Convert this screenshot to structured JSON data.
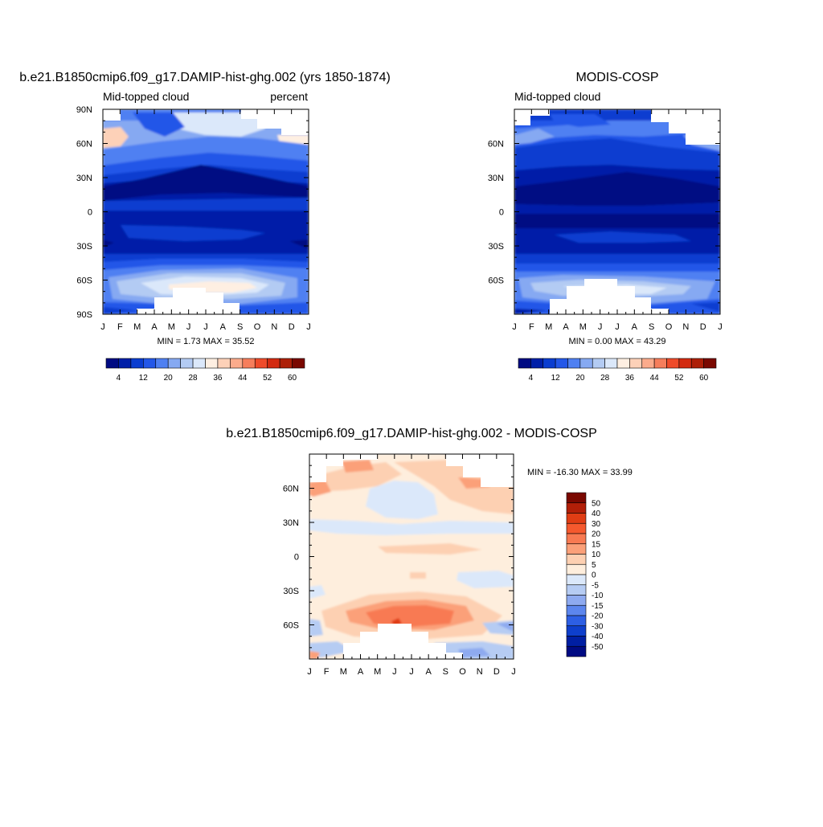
{
  "months": [
    "J",
    "F",
    "M",
    "A",
    "M",
    "J",
    "J",
    "A",
    "S",
    "O",
    "N",
    "D",
    "J"
  ],
  "lat_labels_full": [
    "90N",
    "60N",
    "30N",
    "0",
    "30S",
    "60S",
    "90S"
  ],
  "lat_labels_partial": [
    "60N",
    "30N",
    "0",
    "30S",
    "60S"
  ],
  "seq_levels": [
    4,
    8,
    12,
    16,
    20,
    24,
    28,
    32,
    36,
    40,
    44,
    48,
    52,
    56,
    60
  ],
  "seq_ticks": [
    "4",
    "12",
    "20",
    "28",
    "36",
    "44",
    "52",
    "60"
  ],
  "seq_colors": [
    "#000b83",
    "#001fa8",
    "#0a3dd0",
    "#2357e8",
    "#4f80f2",
    "#86a9f2",
    "#b3cbf3",
    "#dbe8fa",
    "#feefe2",
    "#fdd1b8",
    "#fbab8c",
    "#f67e5c",
    "#ef4b2a",
    "#d32a10",
    "#ad1f07",
    "#7a0800"
  ],
  "diff_levels": [
    "50",
    "40",
    "30",
    "20",
    "15",
    "10",
    "5",
    "0",
    "-5",
    "-10",
    "-15",
    "-20",
    "-30",
    "-40",
    "-50"
  ],
  "diff_colors": [
    "#7a0800",
    "#b21f08",
    "#e03d14",
    "#f5592e",
    "#f87a52",
    "#fba079",
    "#fdd0b2",
    "#feeedd",
    "#dbe8fa",
    "#b6ccf3",
    "#8eaaf0",
    "#5c86ee",
    "#2d5fe4",
    "#0e3fcc",
    "#001fa3",
    "#000b83"
  ],
  "panels": {
    "model": {
      "title": "b.e21.B1850cmip6.f09_g17.DAMIP-hist-ghg.002 (yrs 1850-1874)",
      "left_label": "Mid-topped cloud",
      "right_label": "percent",
      "stats": "MIN =   1.73 MAX =  35.52"
    },
    "obs": {
      "title": "MODIS-COSP",
      "left_label": "Mid-topped cloud",
      "stats": "MIN =   0.00 MAX =  43.29"
    },
    "diff": {
      "title": "b.e21.B1850cmip6.f09_g17.DAMIP-hist-ghg.002 - MODIS-COSP",
      "stats": "MIN = -16.30 MAX =  33.99"
    }
  },
  "chart_data": [
    {
      "type": "heatmap",
      "title": "b.e21.B1850cmip6.f09_g17.DAMIP-hist-ghg.002 (yrs 1850-1874)",
      "subtitle_left": "Mid-topped cloud",
      "subtitle_right": "percent",
      "x": "month (Jan to Jan)",
      "y": "latitude (90S to 90N)",
      "zlim": [
        1.73,
        35.52
      ],
      "levels": [
        4,
        8,
        12,
        16,
        20,
        24,
        28,
        32,
        36,
        40,
        44,
        48,
        52,
        56,
        60
      ]
    },
    {
      "type": "heatmap",
      "title": "MODIS-COSP",
      "subtitle_left": "Mid-topped cloud",
      "x": "month (Jan to Jan)",
      "y": "latitude (90S to 90N)",
      "zlim": [
        0.0,
        43.29
      ],
      "levels": [
        4,
        8,
        12,
        16,
        20,
        24,
        28,
        32,
        36,
        40,
        44,
        48,
        52,
        56,
        60
      ]
    },
    {
      "type": "heatmap",
      "title": "b.e21.B1850cmip6.f09_g17.DAMIP-hist-ghg.002 - MODIS-COSP",
      "x": "month (Jan to Jan)",
      "y": "latitude (90S to 90N)",
      "zlim": [
        -16.3,
        33.99
      ],
      "levels": [
        -50,
        -40,
        -30,
        -20,
        -15,
        -10,
        -5,
        0,
        5,
        10,
        15,
        20,
        30,
        40,
        50
      ]
    }
  ]
}
